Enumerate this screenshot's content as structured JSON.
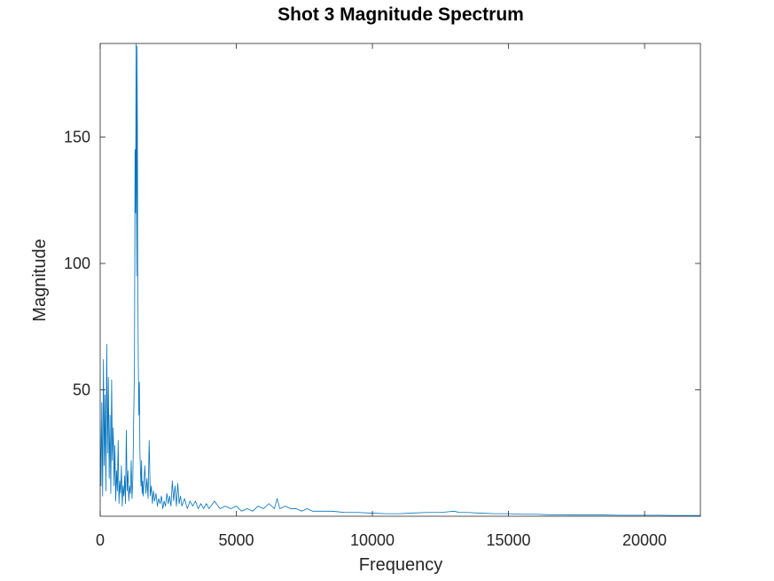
{
  "chart_data": {
    "type": "line",
    "title": "Shot 3 Magnitude Spectrum",
    "xlabel": "Frequency",
    "ylabel": "Magnitude",
    "xlim": [
      0,
      22050
    ],
    "ylim": [
      0,
      187
    ],
    "xticks": [
      0,
      5000,
      10000,
      15000,
      20000
    ],
    "yticks": [
      50,
      100,
      150
    ],
    "grid": false,
    "line_color": "#0072BD",
    "series": [
      {
        "x": [
          0,
          30,
          60,
          90,
          120,
          150,
          180,
          210,
          240,
          270,
          300,
          330,
          360,
          390,
          420,
          450,
          480,
          510,
          540,
          570,
          600,
          630,
          660,
          690,
          720,
          750,
          780,
          810,
          840,
          870,
          900,
          930,
          960,
          990,
          1020,
          1050,
          1080,
          1110,
          1140,
          1170,
          1200,
          1230,
          1260,
          1280,
          1300,
          1320,
          1340,
          1360,
          1380,
          1400,
          1420,
          1440,
          1460,
          1480,
          1500,
          1520,
          1540,
          1560,
          1580,
          1600,
          1640,
          1680,
          1720,
          1760,
          1800,
          1840,
          1880,
          1920,
          1960,
          2000,
          2050,
          2100,
          2150,
          2200,
          2250,
          2300,
          2350,
          2400,
          2450,
          2500,
          2550,
          2600,
          2650,
          2700,
          2750,
          2800,
          2850,
          2900,
          2950,
          3000,
          3100,
          3200,
          3300,
          3400,
          3500,
          3600,
          3700,
          3800,
          3900,
          4000,
          4200,
          4400,
          4600,
          4800,
          5000,
          5200,
          5400,
          5600,
          5800,
          6000,
          6200,
          6400,
          6500,
          6600,
          6800,
          7000,
          7200,
          7400,
          7600,
          7800,
          8000,
          8500,
          9000,
          9500,
          10000,
          10500,
          11000,
          11500,
          12000,
          12500,
          13000,
          13200,
          13500,
          14000,
          14500,
          15000,
          15500,
          16000,
          16500,
          17000,
          17500,
          18000,
          18500,
          19000,
          19500,
          20000,
          20500,
          21000,
          21500,
          22050
        ],
        "y": [
          38,
          12,
          45,
          8,
          62,
          20,
          48,
          10,
          68,
          25,
          55,
          15,
          40,
          9,
          54,
          22,
          35,
          12,
          28,
          6,
          18,
          10,
          30,
          5,
          14,
          9,
          20,
          4,
          12,
          8,
          16,
          5,
          34,
          10,
          18,
          6,
          12,
          9,
          22,
          7,
          15,
          38,
          60,
          145,
          120,
          187,
          95,
          186,
          100,
          60,
          40,
          53,
          25,
          18,
          12,
          22,
          9,
          14,
          8,
          12,
          20,
          9,
          15,
          7,
          30,
          8,
          12,
          5,
          10,
          6,
          9,
          4,
          7,
          5,
          8,
          3,
          6,
          4,
          9,
          5,
          8,
          4,
          14,
          6,
          12,
          4,
          13,
          5,
          8,
          4,
          7,
          3,
          6,
          4,
          6,
          3,
          5,
          3,
          5,
          3,
          6,
          3,
          4,
          3,
          4,
          2,
          3,
          2,
          4,
          3,
          5,
          3,
          7,
          3,
          4,
          3,
          3,
          2,
          3,
          2,
          2,
          2,
          1.5,
          1.5,
          1.2,
          1,
          1,
          1.3,
          1.5,
          1.5,
          2,
          1.5,
          1.5,
          1.2,
          1,
          1,
          0.8,
          0.8,
          0.6,
          0.6,
          0.5,
          0.5,
          0.5,
          0.4,
          0.4,
          0.4,
          0.4,
          0.3,
          0.3,
          0.3
        ]
      }
    ]
  }
}
